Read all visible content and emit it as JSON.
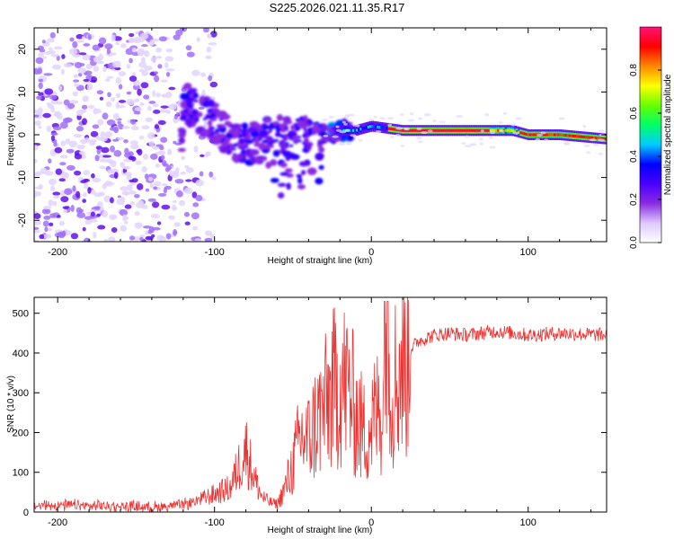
{
  "title": "S225.2026.021.11.35.R17",
  "colors": {
    "snr_line": "#ee3333",
    "colorbar_stops": [
      "#ffffff",
      "#dcc8ff",
      "#8a2be2",
      "#4b00ff",
      "#0000ff",
      "#00ccff",
      "#00ff66",
      "#66ff00",
      "#ffff00",
      "#ff8800",
      "#ff0000",
      "#ff1177"
    ]
  },
  "chart_data": [
    {
      "type": "heatmap",
      "title": "",
      "xlabel": "Height of straight line (km)",
      "ylabel": "Frequency (Hz)",
      "xlim": [
        -215,
        150
      ],
      "ylim": [
        -25,
        25
      ],
      "xticks": [
        -200,
        -100,
        0,
        100
      ],
      "xtick_labels": [
        "-200",
        "-100",
        "0",
        "100"
      ],
      "yticks": [
        20,
        10,
        0,
        -10,
        -20
      ],
      "ytick_labels": [
        "20",
        "10",
        "0",
        "-10",
        "-20"
      ],
      "colorbar": {
        "label": "Normalized spectral amplitude",
        "range": [
          0,
          1
        ],
        "ticks": [
          0.0,
          0.2,
          0.4,
          0.6,
          0.8
        ],
        "tick_labels": [
          "0.0",
          "0.2",
          "0.4",
          "0.6",
          "0.8"
        ]
      },
      "ridge": {
        "description_points_km_hz": [
          [
            -120,
            8
          ],
          [
            -110,
            5
          ],
          [
            -100,
            3
          ],
          [
            -90,
            -1
          ],
          [
            -80,
            -2
          ],
          [
            -70,
            -2
          ],
          [
            -60,
            1
          ],
          [
            -50,
            -1
          ],
          [
            -40,
            1
          ],
          [
            -30,
            0
          ],
          [
            -20,
            1
          ],
          [
            -10,
            1
          ],
          [
            0,
            2
          ],
          [
            20,
            1
          ],
          [
            40,
            1
          ],
          [
            60,
            1
          ],
          [
            80,
            1
          ],
          [
            90,
            1
          ],
          [
            100,
            0
          ],
          [
            120,
            0
          ],
          [
            150,
            -1
          ]
        ],
        "noise_region_km": [
          -215,
          -105
        ]
      }
    },
    {
      "type": "line",
      "title": "",
      "xlabel": "Height of straight line (km)",
      "ylabel": "SNR (10 * v/v)",
      "xlim": [
        -215,
        150
      ],
      "ylim": [
        0,
        540
      ],
      "xticks": [
        -200,
        -100,
        0,
        100
      ],
      "xtick_labels": [
        "-200",
        "-100",
        "0",
        "100"
      ],
      "yticks": [
        0,
        100,
        200,
        300,
        400,
        500
      ],
      "ytick_labels": [
        "0",
        "100",
        "200",
        "300",
        "400",
        "500"
      ],
      "series": [
        {
          "name": "SNR",
          "x": [
            -215,
            -200,
            -180,
            -160,
            -140,
            -120,
            -110,
            -100,
            -90,
            -85,
            -80,
            -75,
            -70,
            -65,
            -60,
            -55,
            -50,
            -45,
            -40,
            -35,
            -30,
            -25,
            -20,
            -15,
            -10,
            -5,
            0,
            5,
            10,
            15,
            20,
            25,
            30,
            40,
            50,
            60,
            80,
            100,
            120,
            150
          ],
          "y": [
            15,
            18,
            15,
            15,
            12,
            18,
            30,
            45,
            60,
            110,
            160,
            90,
            40,
            25,
            20,
            60,
            120,
            190,
            180,
            230,
            260,
            300,
            330,
            310,
            250,
            200,
            220,
            260,
            300,
            330,
            380,
            410,
            430,
            445,
            450,
            445,
            455,
            445,
            450,
            445
          ]
        }
      ]
    }
  ]
}
